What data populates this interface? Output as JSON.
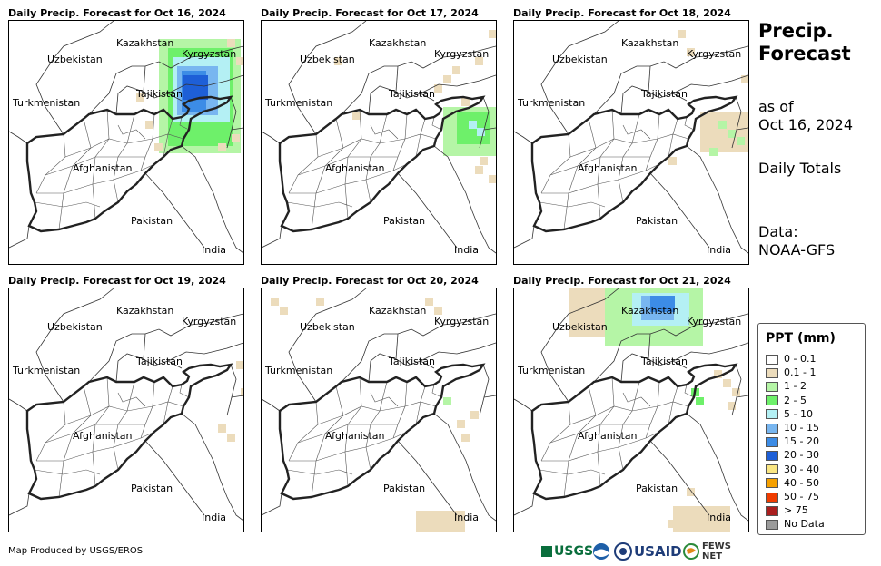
{
  "side": {
    "title_line1": "Precip.",
    "title_line2": "Forecast",
    "asof_line1": "as of",
    "asof_line2": "Oct 16, 2024",
    "totals": "Daily Totals",
    "data_line1": "Data:",
    "data_line2": "NOAA-GFS"
  },
  "labels": {
    "kazakhstan": "Kazakhstan",
    "uzbekistan": "Uzbekistan",
    "kyrgyzstan": "Kyrgyzstan",
    "tajikistan": "Tajikistan",
    "turkmenistan": "Turkmenistan",
    "afghanistan": "Afghanistan",
    "pakistan": "Pakistan",
    "india": "India"
  },
  "panels": [
    {
      "title": "Daily Precip. Forecast for Oct 16, 2024"
    },
    {
      "title": "Daily Precip. Forecast for Oct 17, 2024"
    },
    {
      "title": "Daily Precip. Forecast for Oct 18, 2024"
    },
    {
      "title": "Daily Precip. Forecast for Oct 19, 2024"
    },
    {
      "title": "Daily Precip. Forecast for Oct 20, 2024"
    },
    {
      "title": "Daily Precip. Forecast for Oct 21, 2024"
    }
  ],
  "legend": {
    "title": "PPT (mm)",
    "items": [
      {
        "label": "0 - 0.1",
        "color": "#ffffff"
      },
      {
        "label": "0.1 - 1",
        "color": "#ecdcbc"
      },
      {
        "label": "1 - 2",
        "color": "#b5f5a6"
      },
      {
        "label": "2 - 5",
        "color": "#6ef06a"
      },
      {
        "label": "5 - 10",
        "color": "#b4f0f4"
      },
      {
        "label": "10 - 15",
        "color": "#78b6f0"
      },
      {
        "label": "15 - 20",
        "color": "#3c8ce6"
      },
      {
        "label": "20 - 30",
        "color": "#1e5fd7"
      },
      {
        "label": "30 - 40",
        "color": "#fae682"
      },
      {
        "label": "40 - 50",
        "color": "#f5a000"
      },
      {
        "label": "50 - 75",
        "color": "#f03c00"
      },
      {
        "label": "> 75",
        "color": "#aa1e1e"
      },
      {
        "label": "No Data",
        "color": "#9b9b9b"
      }
    ]
  },
  "credit": "Map Produced by USGS/EROS",
  "logos": {
    "usgs": "USGS",
    "usaid": "USAID",
    "fewsnet": "FEWS NET"
  }
}
